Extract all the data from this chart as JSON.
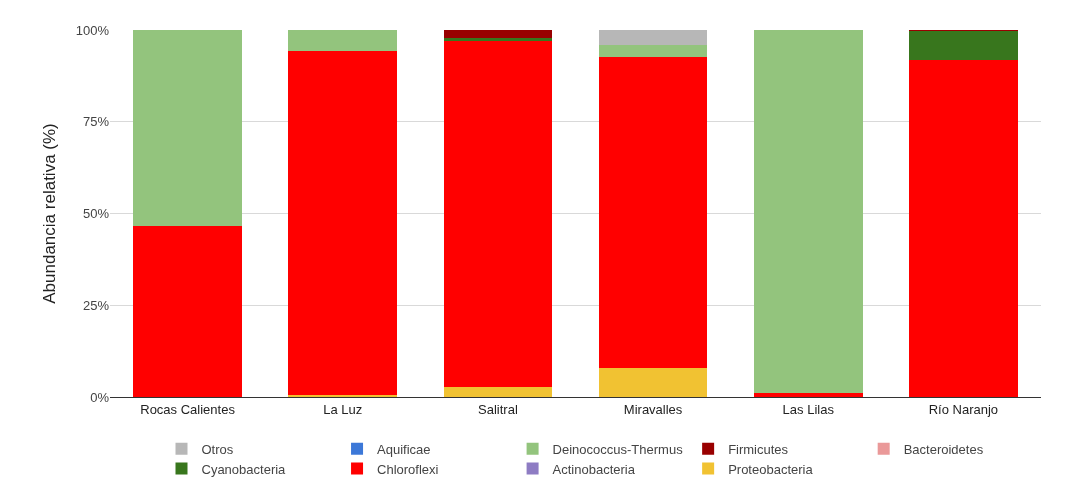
{
  "chart_data": {
    "type": "bar",
    "stacked": true,
    "ylabel": "Abundancia relativa (%)",
    "categories": [
      "Rocas Calientes",
      "La Luz",
      "Salitral",
      "Miravalles",
      "Las Lilas",
      "Río Naranjo"
    ],
    "series": [
      {
        "name": "Proteobacteria",
        "color": "#f1c232",
        "values": [
          0,
          0.5,
          2.7,
          7.9,
          0,
          0
        ]
      },
      {
        "name": "Actinobacteria",
        "color": "#8e7cc3",
        "values": [
          0,
          0,
          0,
          0,
          0,
          0
        ]
      },
      {
        "name": "Chloroflexi",
        "color": "#ff0000",
        "values": [
          46.6,
          93.7,
          94.3,
          84.8,
          1.2,
          91.7
        ]
      },
      {
        "name": "Cyanobacteria",
        "color": "#38761d",
        "values": [
          0,
          0,
          0.8,
          0,
          0,
          8.1
        ]
      },
      {
        "name": "Bacteroidetes",
        "color": "#ea9999",
        "values": [
          0,
          0,
          0,
          0,
          0,
          0
        ]
      },
      {
        "name": "Firmicutes",
        "color": "#990000",
        "values": [
          0,
          0,
          2.2,
          0,
          0,
          0.2
        ]
      },
      {
        "name": "Deinococcus-Thermus",
        "color": "#93c47d",
        "values": [
          53.4,
          5.8,
          0,
          3.1,
          98.8,
          0
        ]
      },
      {
        "name": "Aquificae",
        "color": "#3c78d8",
        "values": [
          0,
          0,
          0,
          0,
          0,
          0
        ]
      },
      {
        "name": "Otros",
        "color": "#b7b7b7",
        "values": [
          0,
          0,
          0,
          4.2,
          0,
          0
        ]
      }
    ],
    "ylim": [
      0,
      100
    ],
    "yticks": [
      {
        "value": 0,
        "label": "0%"
      },
      {
        "value": 25,
        "label": "25%"
      },
      {
        "value": 50,
        "label": "50%"
      },
      {
        "value": 75,
        "label": "75%"
      },
      {
        "value": 100,
        "label": "100%"
      }
    ],
    "grid": "y",
    "legend": "bottom"
  }
}
